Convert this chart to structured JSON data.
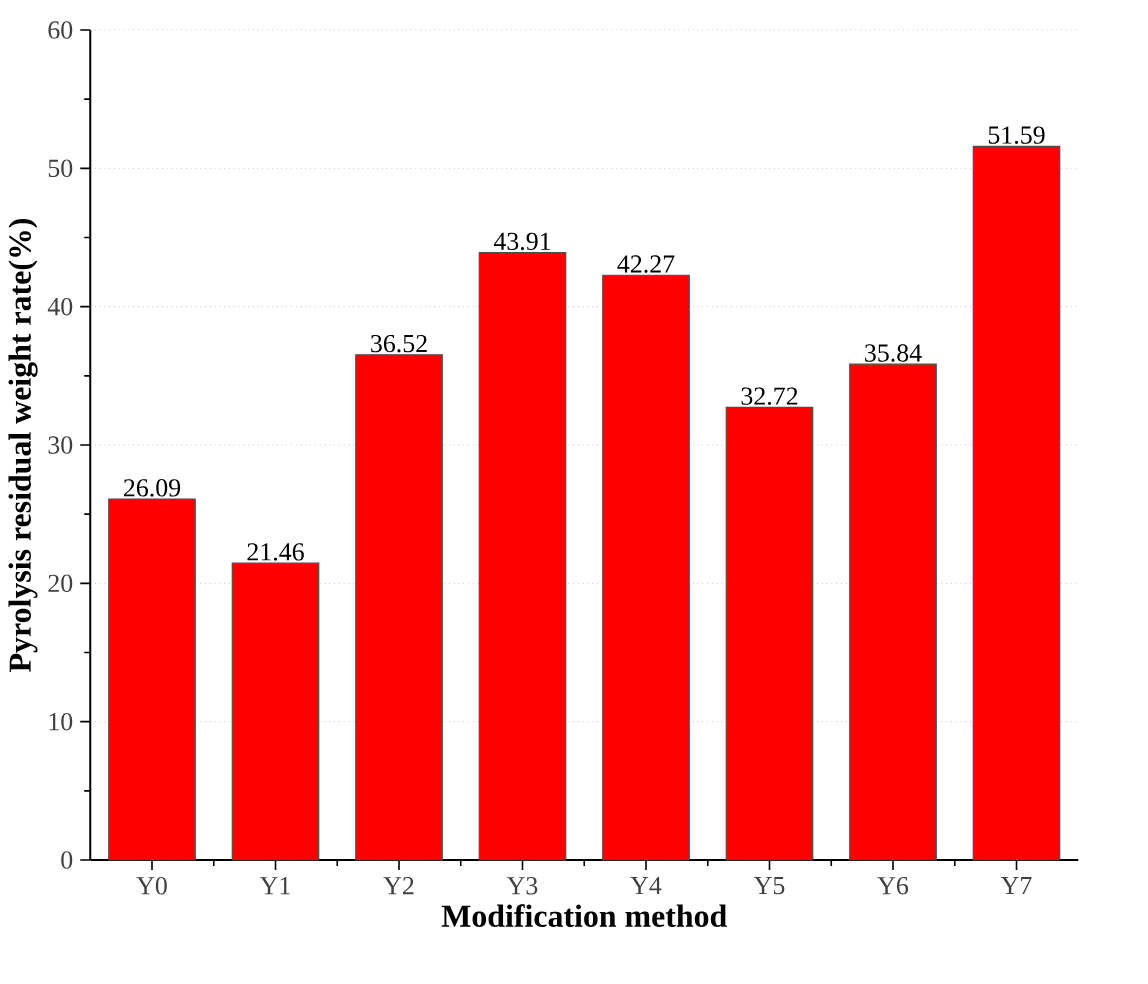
{
  "chart_data": {
    "type": "bar",
    "xlabel": "Modification method",
    "ylabel": "Pyrolysis residual weight rate(%)",
    "categories": [
      "Y0",
      "Y1",
      "Y2",
      "Y3",
      "Y4",
      "Y5",
      "Y6",
      "Y7"
    ],
    "values": [
      26.09,
      21.46,
      36.52,
      43.91,
      42.27,
      32.72,
      35.84,
      51.59
    ],
    "color": "#ff0000",
    "ylim": [
      0,
      60
    ],
    "yticks": [
      0,
      10,
      20,
      30,
      40,
      50,
      60
    ],
    "grid": "y",
    "data_labels": true
  }
}
